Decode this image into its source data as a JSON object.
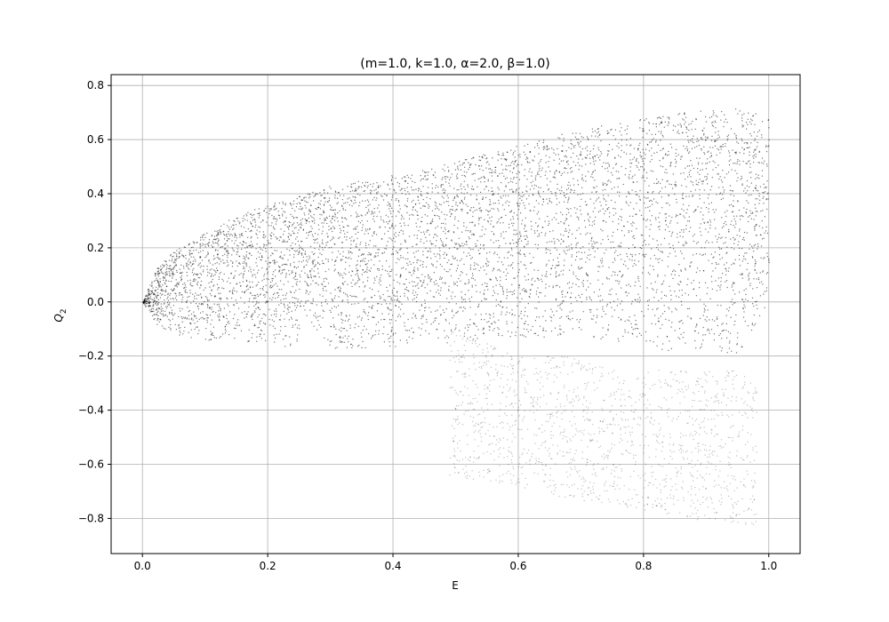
{
  "chart_data": {
    "type": "scatter",
    "title": "(m=1.0, k=1.0, α=2.0, β=1.0)",
    "xlabel": "E",
    "ylabel_base": "Q",
    "ylabel_sub": "2",
    "xlim": [
      -0.05,
      1.05
    ],
    "ylim": [
      -0.93,
      0.84
    ],
    "x_ticks": [
      0.0,
      0.2,
      0.4,
      0.6,
      0.8,
      1.0
    ],
    "x_tick_labels": [
      "0.0",
      "0.2",
      "0.4",
      "0.6",
      "0.8",
      "1.0"
    ],
    "y_ticks": [
      -0.8,
      -0.6,
      -0.4,
      -0.2,
      0.0,
      0.2,
      0.4,
      0.6,
      0.8
    ],
    "y_tick_labels": [
      "−0.8",
      "−0.6",
      "−0.4",
      "−0.2",
      "0.0",
      "0.2",
      "0.4",
      "0.6",
      "0.8"
    ],
    "grid": true,
    "marker_color": "#000000",
    "series": [
      {
        "envelope": {
          "E": [
            0.0,
            0.02,
            0.05,
            0.1,
            0.15,
            0.2,
            0.245,
            0.26,
            0.3,
            0.35,
            0.4,
            0.45,
            0.5,
            0.55,
            0.6,
            0.65,
            0.7,
            0.75,
            0.8,
            0.85,
            0.9,
            0.95,
            1.0
          ],
          "upper": [
            0.0,
            0.12,
            0.19,
            0.26,
            0.32,
            0.36,
            0.39,
            0.4,
            0.43,
            0.45,
            0.47,
            0.49,
            0.52,
            0.55,
            0.58,
            0.61,
            0.64,
            0.66,
            0.68,
            0.7,
            0.71,
            0.72,
            0.68
          ],
          "lower": [
            0.0,
            -0.08,
            -0.12,
            -0.14,
            -0.15,
            -0.16,
            -0.17,
            -0.05,
            -0.18,
            -0.17,
            -0.17,
            -0.16,
            -0.15,
            -0.14,
            -0.13,
            -0.13,
            -0.13,
            -0.14,
            -0.17,
            -0.18,
            -0.19,
            -0.2,
            0.0
          ]
        }
      },
      {
        "envelope": {
          "E": [
            0.49,
            0.55,
            0.6,
            0.65,
            0.67,
            0.69,
            0.75,
            0.8,
            0.85,
            0.9,
            0.95,
            0.98
          ],
          "upper": [
            -0.1,
            -0.15,
            -0.2,
            -0.2,
            -0.2,
            -0.2,
            -0.25,
            -0.25,
            -0.25,
            -0.25,
            -0.25,
            -0.3
          ],
          "lower": [
            -0.65,
            -0.66,
            -0.68,
            -0.71,
            -0.72,
            -0.73,
            -0.75,
            -0.77,
            -0.79,
            -0.81,
            -0.83,
            -0.84
          ]
        }
      }
    ]
  }
}
